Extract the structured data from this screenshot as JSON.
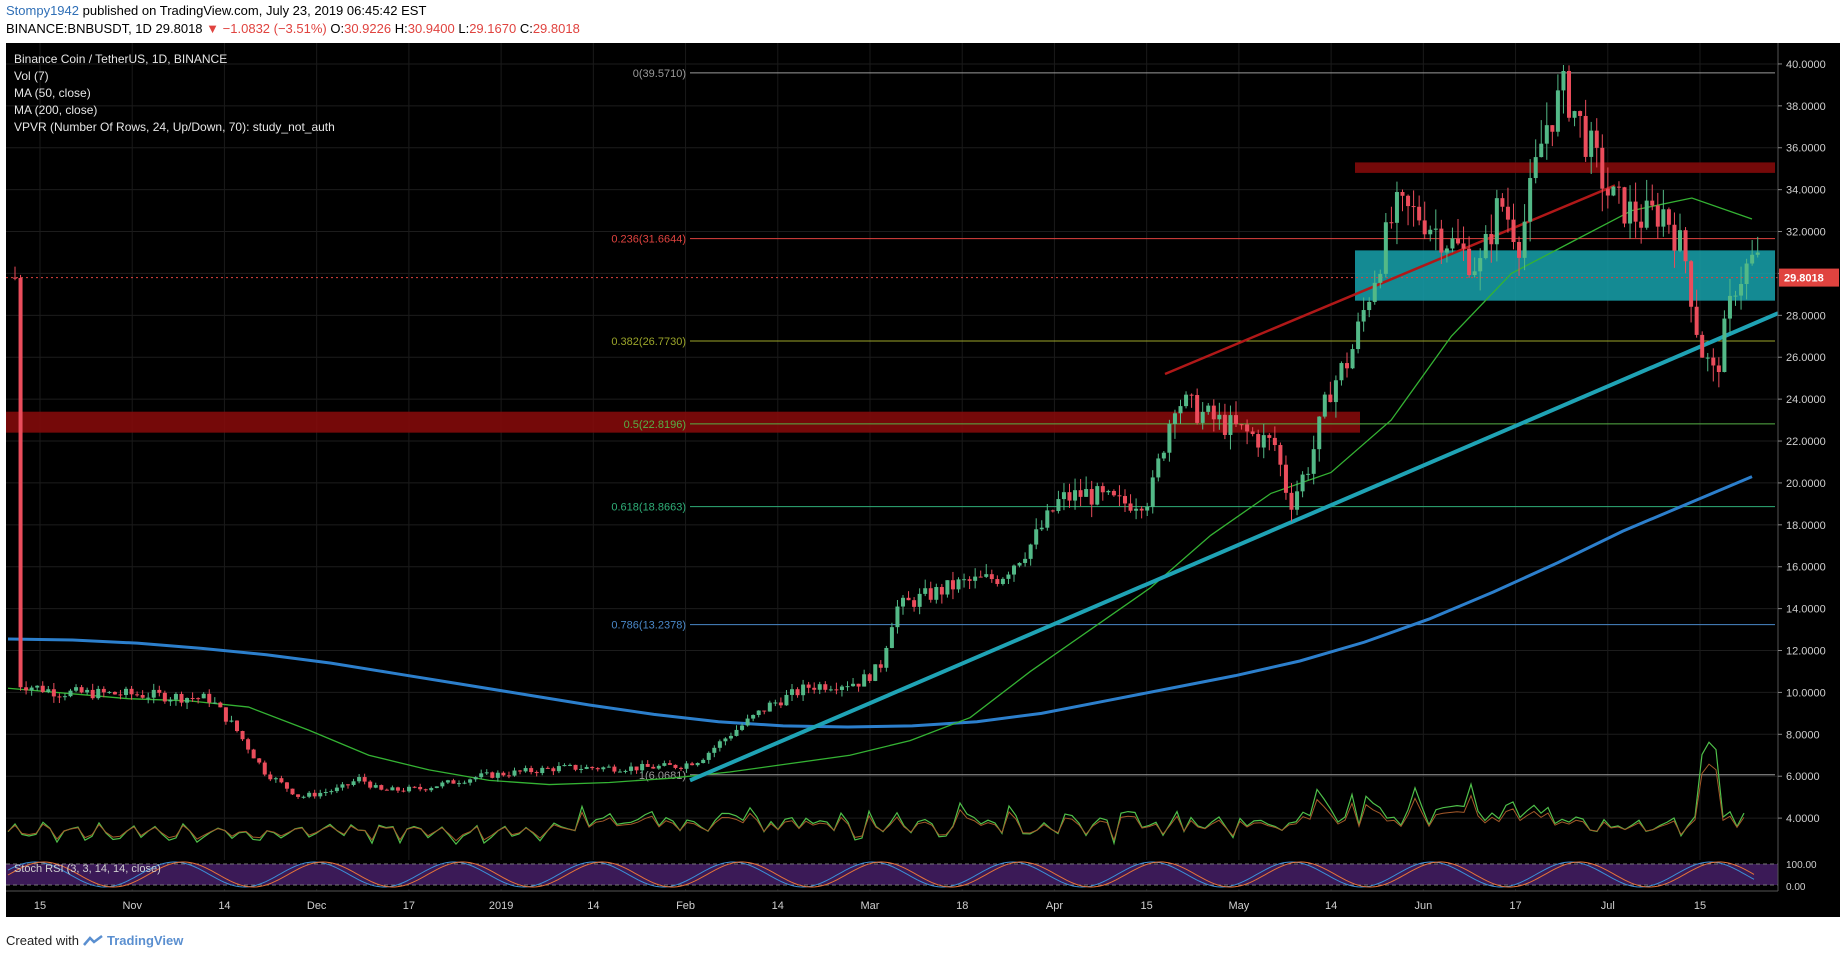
{
  "header": {
    "username": "Stompy1942",
    "published_text": "published on TradingView.com, July 23, 2019 06:45:42 EST",
    "symbol": "BINANCE:BNBUSDT, 1D",
    "last": "29.8018",
    "arrow": "▼",
    "change": "−1.0832 (−3.51%)",
    "o_label": "O:",
    "o_val": "30.9226",
    "h_label": "H:",
    "h_val": "30.9400",
    "l_label": "L:",
    "l_val": "29.1670",
    "c_label": "C:",
    "c_val": "29.8018"
  },
  "footer": {
    "created_with": "Created with",
    "brand": "TradingView"
  },
  "colors": {
    "background": "#000000",
    "up": "#53b987",
    "down": "#eb4d5c",
    "ma50": "#34b233",
    "ma200": "#2c7fcc",
    "trendline": "#1fa3b5",
    "resistance_band": "#8a0b0b",
    "support_box": "#17a2ad",
    "stoch_bg": "#3b1a57"
  },
  "chart_data": {
    "type": "candlestick",
    "title": "Binance Coin / TetherUS, 1D, BINANCE",
    "legend": [
      "Vol (7)",
      "MA (50, close)",
      "MA (200, close)",
      "VPVR (Number Of Rows, 24, Up/Down, 70): study_not_auth"
    ],
    "y_ticks": [
      "40.0000",
      "38.0000",
      "36.0000",
      "34.0000",
      "32.0000",
      "30.0000",
      "28.0000",
      "26.0000",
      "24.0000",
      "22.0000",
      "20.0000",
      "18.0000",
      "16.0000",
      "14.0000",
      "12.0000",
      "10.0000",
      "8.0000",
      "6.0000",
      "4.0000"
    ],
    "ylim": [
      2.0,
      41.0
    ],
    "x_ticks": [
      "15",
      "Nov",
      "14",
      "Dec",
      "17",
      "2019",
      "14",
      "Feb",
      "14",
      "Mar",
      "18",
      "Apr",
      "15",
      "May",
      "14",
      "Jun",
      "17",
      "Jul",
      "15"
    ],
    "last_price_label": "29.8018",
    "last_price": 29.8018,
    "fib_levels": [
      {
        "label": "0(39.5710)",
        "value": 39.571,
        "color": "#9a9a9a"
      },
      {
        "label": "0.236(31.6644)",
        "value": 31.6644,
        "color": "#e0433f"
      },
      {
        "label": "0.382(26.7730)",
        "value": 26.773,
        "color": "#9ba52a"
      },
      {
        "label": "0.5(22.8196)",
        "value": 22.8196,
        "color": "#56b046"
      },
      {
        "label": "0.618(18.8663)",
        "value": 18.8663,
        "color": "#2fae78"
      },
      {
        "label": "0.786(13.2378)",
        "value": 13.2378,
        "color": "#4a88c8"
      },
      {
        "label": "1(6.0681)",
        "value": 6.0681,
        "color": "#9a9a9a"
      }
    ],
    "resistance_zones": [
      {
        "from": 22.4,
        "to": 23.4
      },
      {
        "from": 34.8,
        "to": 35.3
      }
    ],
    "support_zone": {
      "from": 28.7,
      "to": 31.1
    },
    "ma200": [
      12.55,
      12.5,
      12.35,
      12.1,
      11.8,
      11.4,
      10.9,
      10.4,
      9.9,
      9.4,
      8.95,
      8.6,
      8.4,
      8.35,
      8.4,
      8.6,
      9.0,
      9.6,
      10.2,
      10.8,
      11.5,
      12.4,
      13.5,
      14.8,
      16.2,
      17.7,
      19.0,
      20.3
    ],
    "ma50": [
      10.2,
      9.95,
      9.7,
      9.6,
      9.3,
      8.2,
      7.0,
      6.3,
      5.8,
      5.6,
      5.7,
      5.9,
      6.2,
      6.6,
      7.0,
      7.7,
      8.8,
      11.0,
      13.0,
      15.0,
      17.5,
      19.5,
      20.5,
      23.0,
      27.0,
      30.0,
      31.5,
      33.0,
      33.6,
      32.6
    ],
    "stoch_rsi": {
      "label": "Stoch RSI (3, 3, 14, 14, close)",
      "ticks": [
        "100.00",
        "0.00"
      ]
    },
    "axis_note": "1D candles, Oct 2018 – Jul 2019"
  }
}
